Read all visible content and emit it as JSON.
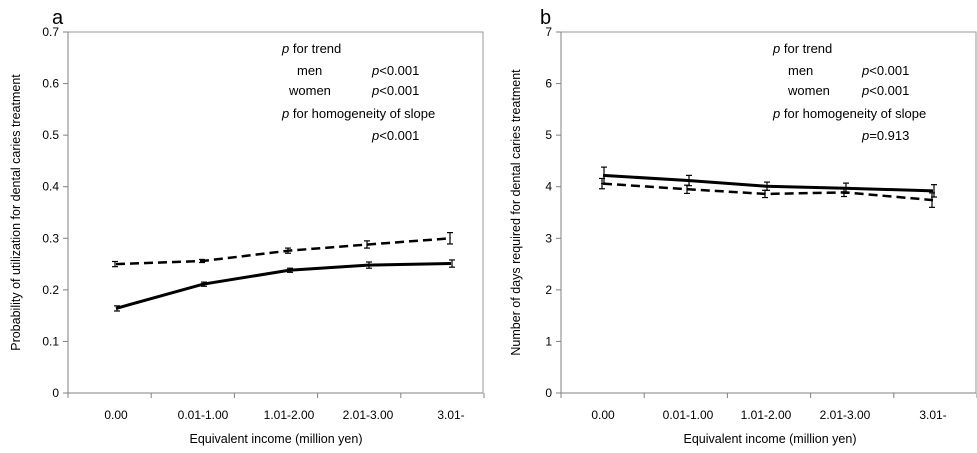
{
  "chart_data": [
    {
      "type": "line",
      "panel_label": "a",
      "ylabel": "Probability of utilization for dental caries treatment",
      "xlabel": "Equivalent income (million yen)",
      "categories": [
        "0.00",
        "0.01-1.00",
        "1.01-2.00",
        "2.01-3.00",
        "3.01-"
      ],
      "ylim": [
        0,
        0.7
      ],
      "yticks": [
        "0",
        "0.1",
        "0.2",
        "0.3",
        "0.4",
        "0.5",
        "0.6",
        "0.7"
      ],
      "grid": false,
      "series": [
        {
          "style": "solid",
          "values": [
            0.164,
            0.211,
            0.238,
            0.248,
            0.251
          ],
          "errors": [
            0.005,
            0.004,
            0.004,
            0.006,
            0.007
          ]
        },
        {
          "style": "dashed",
          "values": [
            0.25,
            0.256,
            0.276,
            0.288,
            0.3
          ],
          "errors": [
            0.005,
            0.003,
            0.005,
            0.007,
            0.011
          ]
        }
      ],
      "annotations": [
        {
          "italic": "p",
          "text": " for trend"
        },
        {
          "italic": "",
          "text": "men"
        },
        {
          "italic": "p",
          "text": "<0.001"
        },
        {
          "italic": "",
          "text": "women"
        },
        {
          "italic": "p",
          "text": "<0.001"
        },
        {
          "italic": "p",
          "text": " for homogeneity of slope"
        },
        {
          "italic": "p",
          "text": "<0.001"
        }
      ]
    },
    {
      "type": "line",
      "panel_label": "b",
      "ylabel": "Number of days required for dental caries treatment",
      "xlabel": "Equivalent income (million yen)",
      "categories": [
        "0.00",
        "0.01-1.00",
        "1.01-2.00",
        "2.01-3.00",
        "3.01-"
      ],
      "ylim": [
        0,
        7
      ],
      "yticks": [
        "0",
        "1",
        "2",
        "3",
        "4",
        "5",
        "6",
        "7"
      ],
      "grid": false,
      "series": [
        {
          "style": "solid",
          "values": [
            4.22,
            4.12,
            4.01,
            3.97,
            3.92
          ],
          "errors": [
            0.16,
            0.1,
            0.08,
            0.1,
            0.12
          ]
        },
        {
          "style": "dashed",
          "values": [
            4.06,
            3.95,
            3.86,
            3.89,
            3.74
          ],
          "errors": [
            0.1,
            0.08,
            0.07,
            0.08,
            0.14
          ]
        }
      ],
      "annotations": [
        {
          "italic": "p",
          "text": " for trend"
        },
        {
          "italic": "",
          "text": "men"
        },
        {
          "italic": "p",
          "text": "<0.001"
        },
        {
          "italic": "",
          "text": "women"
        },
        {
          "italic": "p",
          "text": "<0.001"
        },
        {
          "italic": "p",
          "text": " for homogeneity of slope"
        },
        {
          "italic": "p",
          "text": "=0.913"
        }
      ]
    }
  ]
}
